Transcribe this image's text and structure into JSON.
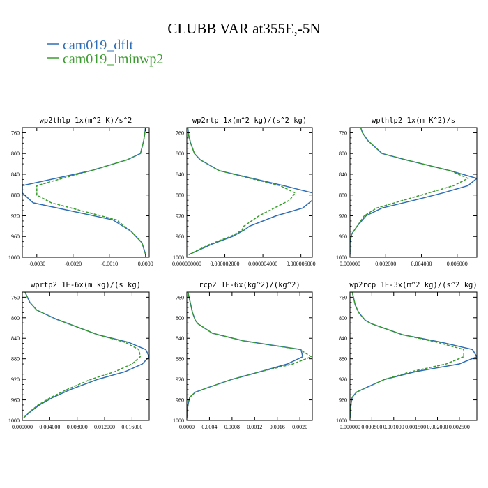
{
  "title": "CLUBB VAR at355E,-5N",
  "legend": [
    {
      "label": "cam019_dflt",
      "color": "#2d6db5"
    },
    {
      "label": "cam019_lminwp2",
      "color": "#3a9c2e"
    }
  ],
  "chart_data": [
    {
      "type": "line",
      "title": "wp2thlp   1x(m^2 K)/s^2",
      "xlim": [
        -0.0034,
        0.0001
      ],
      "ylim": [
        1000,
        750
      ],
      "xticks": [
        -0.003,
        -0.002,
        -0.001,
        0.0
      ],
      "xtick_labels": [
        "-0.0030",
        "-0.0020",
        "-0.0010",
        "0.0000"
      ],
      "yticks": [
        760,
        800,
        840,
        880,
        920,
        960,
        1000
      ],
      "series": [
        {
          "name": "cam019_dflt",
          "color": "#2d6db5",
          "dashed": false,
          "y": [
            750,
            760,
            775,
            800,
            812,
            833,
            862,
            876,
            895,
            928,
            950,
            972,
            990,
            995
          ],
          "x": [
            -0.0,
            -2e-05,
            -5e-05,
            -0.00014,
            -0.0005,
            -0.0015,
            -0.0034,
            -0.0034,
            -0.0031,
            -0.0009,
            -0.0004,
            -0.0001,
            -2e-05,
            0.0
          ]
        },
        {
          "name": "cam019_lminwp2",
          "color": "#3a9c2e",
          "dashed": true,
          "y": [
            750,
            760,
            775,
            800,
            812,
            833,
            850,
            862,
            880,
            895,
            928,
            950,
            972,
            990,
            995
          ],
          "x": [
            -0.0,
            -2e-05,
            -5e-05,
            -0.00014,
            -0.0005,
            -0.0015,
            -0.0024,
            -0.003,
            -0.003,
            -0.0026,
            -0.0008,
            -0.0004,
            -0.0001,
            -2e-05,
            0.0
          ]
        }
      ]
    },
    {
      "type": "line",
      "title": "wp2rtp   1x(m^2 kg)/(s^2 kg)",
      "xlim": [
        0,
        6.6e-06
      ],
      "ylim": [
        1000,
        750
      ],
      "xticks": [
        0,
        2e-06,
        4e-06,
        6e-06
      ],
      "xtick_labels": [
        "0.000000000",
        "0.000002000",
        "0.000004000",
        "0.000006000"
      ],
      "yticks": [
        760,
        800,
        840,
        880,
        920,
        960,
        1000
      ],
      "series": [
        {
          "name": "cam019_dflt",
          "color": "#2d6db5",
          "dashed": false,
          "y": [
            750,
            765,
            780,
            800,
            812,
            833,
            862,
            876,
            890,
            905,
            920,
            940,
            948,
            960,
            975,
            995
          ],
          "x": [
            5e-08,
            1e-07,
            2e-07,
            4e-07,
            7e-07,
            1.7e-06,
            5.1e-06,
            6.6e-06,
            6.6e-06,
            6.1e-06,
            4.7e-06,
            3.3e-06,
            3e-06,
            2.4e-06,
            1.3e-06,
            1e-07
          ]
        },
        {
          "name": "cam019_lminwp2",
          "color": "#3a9c2e",
          "dashed": true,
          "y": [
            750,
            765,
            780,
            800,
            812,
            833,
            862,
            876,
            890,
            905,
            920,
            940,
            948,
            960,
            975,
            995
          ],
          "x": [
            5e-08,
            1e-07,
            2e-07,
            4e-07,
            7e-07,
            1.7e-06,
            4.9e-06,
            5.7e-06,
            5.4e-06,
            4.6e-06,
            3.8e-06,
            3e-06,
            2.9e-06,
            2.3e-06,
            1.2e-06,
            1e-07
          ]
        }
      ]
    },
    {
      "type": "line",
      "title": "wpthlp2   1x(m K^2)/s",
      "xlim": [
        0,
        0.0071
      ],
      "ylim": [
        1000,
        750
      ],
      "xticks": [
        0,
        0.002,
        0.004,
        0.006
      ],
      "xtick_labels": [
        "0.000000",
        "0.002000",
        "0.004000",
        "0.006000"
      ],
      "yticks": [
        760,
        800,
        840,
        880,
        920,
        960,
        1000
      ],
      "series": [
        {
          "name": "cam019_dflt",
          "color": "#2d6db5",
          "dashed": false,
          "y": [
            750,
            760,
            775,
            800,
            812,
            833,
            848,
            862,
            876,
            890,
            905,
            920,
            940,
            955,
            970,
            995
          ],
          "x": [
            0.0006,
            0.0007,
            0.001,
            0.0018,
            0.0031,
            0.0056,
            0.0071,
            0.0066,
            0.0052,
            0.0036,
            0.0018,
            0.0009,
            0.0004,
            0.0001,
            0.0,
            0.0
          ]
        },
        {
          "name": "cam019_lminwp2",
          "color": "#3a9c2e",
          "dashed": true,
          "y": [
            750,
            760,
            775,
            800,
            812,
            833,
            848,
            862,
            876,
            890,
            905,
            920,
            940,
            955,
            970,
            995
          ],
          "x": [
            0.0006,
            0.0007,
            0.001,
            0.0018,
            0.0031,
            0.0056,
            0.0066,
            0.0058,
            0.0044,
            0.003,
            0.0015,
            0.0008,
            0.0004,
            0.0001,
            0.0,
            0.0
          ]
        }
      ]
    },
    {
      "type": "line",
      "title": "wprtp2   1E-6x(m kg)/(s kg)",
      "xlim": [
        0,
        0.0185
      ],
      "ylim": [
        1000,
        750
      ],
      "xticks": [
        0,
        0.004,
        0.008,
        0.012,
        0.016
      ],
      "xtick_labels": [
        "0.000000",
        "0.004000",
        "0.008000",
        "0.012000",
        "0.016000"
      ],
      "yticks": [
        760,
        800,
        840,
        880,
        920,
        960,
        1000
      ],
      "series": [
        {
          "name": "cam019_dflt",
          "color": "#2d6db5",
          "dashed": false,
          "y": [
            750,
            770,
            785,
            803,
            833,
            848,
            862,
            876,
            890,
            905,
            920,
            940,
            955,
            970,
            985,
            995
          ],
          "x": [
            0.0004,
            0.0011,
            0.0021,
            0.005,
            0.011,
            0.0155,
            0.018,
            0.0185,
            0.0175,
            0.015,
            0.011,
            0.007,
            0.0045,
            0.0025,
            0.001,
            0.0002
          ]
        },
        {
          "name": "cam019_lminwp2",
          "color": "#3a9c2e",
          "dashed": true,
          "y": [
            750,
            770,
            785,
            803,
            833,
            848,
            862,
            876,
            890,
            905,
            920,
            940,
            955,
            970,
            985,
            995
          ],
          "x": [
            0.0004,
            0.0011,
            0.0021,
            0.005,
            0.011,
            0.015,
            0.017,
            0.0172,
            0.016,
            0.0135,
            0.01,
            0.0065,
            0.0042,
            0.0023,
            0.0009,
            0.0002
          ]
        }
      ]
    },
    {
      "type": "line",
      "title": "rcp2   1E-6x(kg^2)/(kg^2)",
      "xlim": [
        0,
        0.00222
      ],
      "ylim": [
        1000,
        750
      ],
      "xticks": [
        0,
        0.0004,
        0.0008,
        0.0012,
        0.0016,
        0.002
      ],
      "xtick_labels": [
        "0.0000",
        "0.0004",
        "0.0008",
        "0.0012",
        "0.0016",
        "0.0020"
      ],
      "yticks": [
        760,
        800,
        840,
        880,
        920,
        960,
        1000
      ],
      "series": [
        {
          "name": "cam019_dflt",
          "color": "#2d6db5",
          "dashed": false,
          "y": [
            750,
            760,
            775,
            790,
            805,
            812,
            830,
            845,
            862,
            876,
            890,
            905,
            920,
            935,
            945,
            955,
            970,
            995
          ],
          "x": [
            2e-05,
            4e-05,
            7e-05,
            0.0001,
            0.00015,
            0.0002,
            0.00045,
            0.001,
            0.00202,
            0.00205,
            0.00178,
            0.0013,
            0.0008,
            0.0004,
            0.00015,
            5e-05,
            2e-05,
            0.0
          ]
        },
        {
          "name": "cam019_lminwp2",
          "color": "#3a9c2e",
          "dashed": true,
          "y": [
            750,
            760,
            775,
            790,
            805,
            812,
            830,
            845,
            862,
            876,
            890,
            905,
            920,
            935,
            945,
            955,
            970,
            995
          ],
          "x": [
            2e-05,
            4e-05,
            7e-05,
            0.0001,
            0.00015,
            0.0002,
            0.00045,
            0.001,
            0.002,
            0.0022,
            0.00188,
            0.0013,
            0.0008,
            0.0004,
            0.00015,
            5e-05,
            2e-05,
            0.0
          ]
        }
      ]
    },
    {
      "type": "line",
      "title": "wp2rcp   1E-3x(m^2 kg)/(s^2 kg)",
      "xlim": [
        0,
        0.0029
      ],
      "ylim": [
        1000,
        750
      ],
      "xticks": [
        0,
        0.0005,
        0.001,
        0.0015,
        0.002,
        0.0025
      ],
      "xtick_labels": [
        "0.000000",
        "0.000500",
        "0.001000",
        "0.001500",
        "0.002000",
        "0.002500"
      ],
      "yticks": [
        760,
        800,
        840,
        880,
        920,
        960,
        1000
      ],
      "series": [
        {
          "name": "cam019_dflt",
          "color": "#2d6db5",
          "dashed": false,
          "y": [
            750,
            760,
            775,
            790,
            805,
            812,
            833,
            848,
            862,
            876,
            890,
            905,
            920,
            935,
            945,
            955,
            970,
            995
          ],
          "x": [
            5e-05,
            8e-05,
            0.00012,
            0.0002,
            0.00035,
            0.0005,
            0.0012,
            0.0021,
            0.0028,
            0.0029,
            0.0025,
            0.0015,
            0.0008,
            0.0004,
            0.00015,
            5e-05,
            2e-05,
            0.0
          ]
        },
        {
          "name": "cam019_lminwp2",
          "color": "#3a9c2e",
          "dashed": true,
          "y": [
            750,
            760,
            775,
            790,
            805,
            812,
            833,
            848,
            862,
            876,
            890,
            905,
            920,
            935,
            945,
            955,
            970,
            995
          ],
          "x": [
            5e-05,
            8e-05,
            0.00012,
            0.0002,
            0.00035,
            0.0005,
            0.0012,
            0.002,
            0.0026,
            0.0026,
            0.0022,
            0.0014,
            0.0008,
            0.0004,
            0.00015,
            5e-05,
            2e-05,
            0.0
          ]
        }
      ]
    }
  ]
}
